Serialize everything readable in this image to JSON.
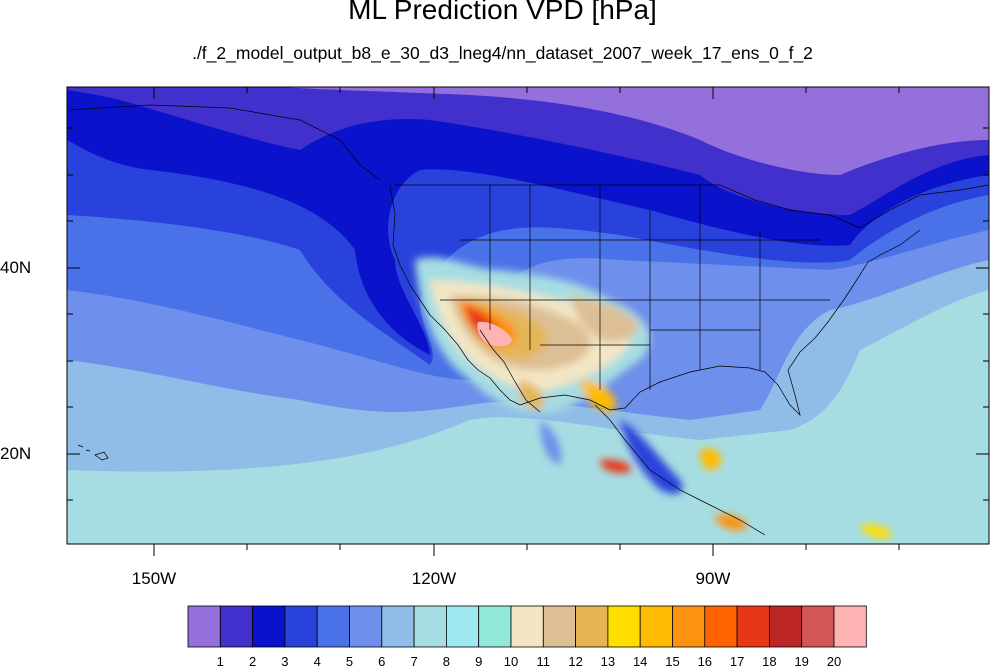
{
  "title": "ML Prediction VPD [hPa]",
  "subtitle": "./f_2_model_output_b8_e_30_d3_lneg4/nn_dataset_2007_week_17_ens_0_f_2",
  "map": {
    "lon_range": [
      -160,
      -65
    ],
    "lat_range": [
      10,
      60
    ],
    "lat_labels": [
      "40N",
      "20N"
    ],
    "lon_labels": [
      "150W",
      "120W",
      "90W"
    ]
  },
  "colorbar": {
    "labels": [
      "1",
      "2",
      "3",
      "4",
      "5",
      "6",
      "7",
      "8",
      "9",
      "10",
      "11",
      "12",
      "13",
      "14",
      "15",
      "16",
      "17",
      "18",
      "19",
      "20"
    ],
    "colors": [
      "#9370db",
      "#4230cc",
      "#0a13cb",
      "#2a42dc",
      "#4a72e8",
      "#6e8feb",
      "#8fbde8",
      "#a6dde2",
      "#9ee9ef",
      "#93e8dc",
      "#f2e6c4",
      "#ddbf95",
      "#e6b556",
      "#ffde00",
      "#ffbb00",
      "#ff9110",
      "#ff6400",
      "#e83716",
      "#bc2525",
      "#d35656",
      "#ffb4b4"
    ]
  }
}
